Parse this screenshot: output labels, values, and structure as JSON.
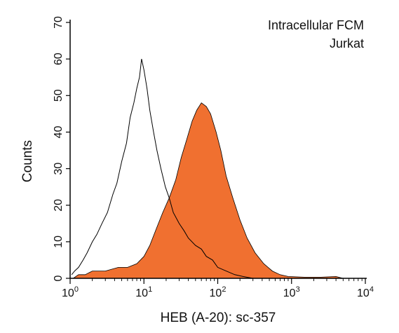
{
  "chart_data": {
    "type": "area",
    "title": "",
    "annotations": [
      "Intracellular FCM",
      "Jurkat"
    ],
    "xlabel": "HEB (A-20): sc-357",
    "ylabel": "Counts",
    "xscale": "log",
    "xlim": [
      1,
      10000
    ],
    "ylim": [
      0,
      70
    ],
    "x_ticks": [
      {
        "base": "10",
        "exp": "0"
      },
      {
        "base": "10",
        "exp": "1"
      },
      {
        "base": "10",
        "exp": "2"
      },
      {
        "base": "10",
        "exp": "3"
      },
      {
        "base": "10",
        "exp": "4"
      }
    ],
    "y_ticks": [
      0,
      10,
      20,
      30,
      40,
      50,
      60,
      70
    ],
    "grid": false,
    "series": [
      {
        "style": "outline",
        "color": "#000000",
        "points": [
          [
            1.05,
            1
          ],
          [
            1.15,
            2
          ],
          [
            1.3,
            3
          ],
          [
            1.5,
            5
          ],
          [
            1.7,
            7
          ],
          [
            2.0,
            10
          ],
          [
            2.3,
            12
          ],
          [
            2.7,
            15
          ],
          [
            3.2,
            18
          ],
          [
            3.8,
            23
          ],
          [
            4.3,
            26
          ],
          [
            5.0,
            32
          ],
          [
            5.8,
            37
          ],
          [
            6.5,
            44
          ],
          [
            7.3,
            48
          ],
          [
            8.0,
            52
          ],
          [
            8.7,
            55
          ],
          [
            9.3,
            60
          ],
          [
            10.0,
            57
          ],
          [
            11.0,
            52
          ],
          [
            12.0,
            46
          ],
          [
            13.5,
            40
          ],
          [
            15.0,
            35
          ],
          [
            17.0,
            30
          ],
          [
            19.5,
            25
          ],
          [
            22.0,
            22
          ],
          [
            25.0,
            18
          ],
          [
            30.0,
            15
          ],
          [
            35.0,
            13
          ],
          [
            40.0,
            11
          ],
          [
            50.0,
            9
          ],
          [
            60.0,
            8
          ],
          [
            70.0,
            6
          ],
          [
            85.0,
            5
          ],
          [
            100.0,
            3
          ],
          [
            130.0,
            2
          ],
          [
            170.0,
            1
          ],
          [
            220.0,
            0.5
          ],
          [
            300.0,
            0
          ]
        ]
      },
      {
        "style": "filled",
        "color": "#f07030",
        "points": [
          [
            1.1,
            0
          ],
          [
            1.3,
            1
          ],
          [
            1.6,
            1
          ],
          [
            2.0,
            2
          ],
          [
            3.0,
            2
          ],
          [
            4.5,
            3
          ],
          [
            6.0,
            3
          ],
          [
            8.0,
            4
          ],
          [
            10.0,
            6
          ],
          [
            12.0,
            9
          ],
          [
            15.0,
            14
          ],
          [
            18.0,
            18
          ],
          [
            22.0,
            22
          ],
          [
            27.0,
            27
          ],
          [
            32.0,
            33
          ],
          [
            38.0,
            38
          ],
          [
            45.0,
            43
          ],
          [
            52.0,
            46
          ],
          [
            60.0,
            48
          ],
          [
            70.0,
            47
          ],
          [
            80.0,
            45
          ],
          [
            95.0,
            40
          ],
          [
            110.0,
            35
          ],
          [
            130.0,
            28
          ],
          [
            160.0,
            22
          ],
          [
            200.0,
            16
          ],
          [
            250.0,
            11
          ],
          [
            320.0,
            7
          ],
          [
            420.0,
            4
          ],
          [
            550.0,
            2
          ],
          [
            700.0,
            1
          ],
          [
            900.0,
            0.5
          ],
          [
            1500.0,
            0.3
          ],
          [
            2500.0,
            0.3
          ],
          [
            4000.0,
            0.5
          ],
          [
            5000.0,
            0
          ]
        ]
      }
    ]
  }
}
